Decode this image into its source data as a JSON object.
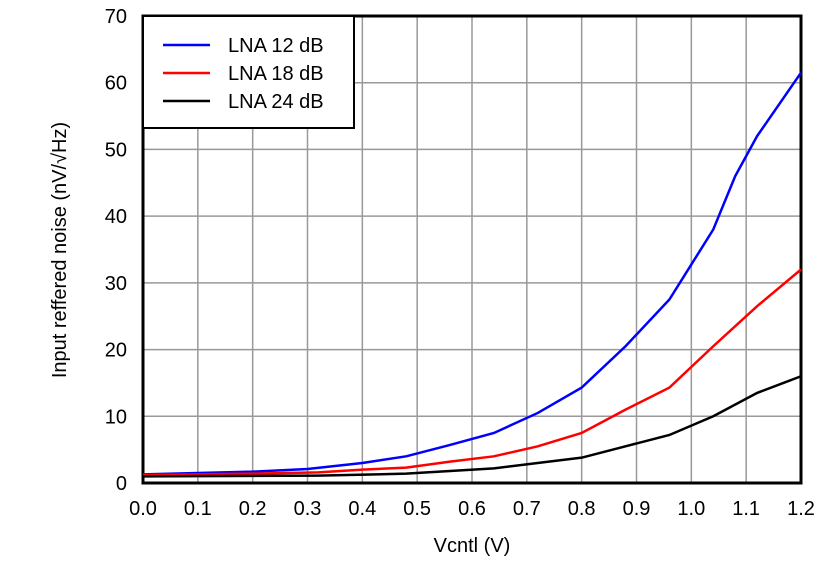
{
  "chart_data": {
    "type": "line",
    "title": "",
    "xlabel": "Vcntl (V)",
    "ylabel": "Input reffered noise (nV/√Hz)",
    "xlim": [
      0,
      1.2
    ],
    "ylim": [
      0,
      70
    ],
    "xticks": [
      "0.0",
      "0.1",
      "0.2",
      "0.3",
      "0.4",
      "0.5",
      "0.6",
      "0.7",
      "0.8",
      "0.9",
      "1.0",
      "1.1",
      "1.2"
    ],
    "yticks": [
      "0",
      "10",
      "20",
      "30",
      "40",
      "50",
      "60",
      "70"
    ],
    "grid": true,
    "legend": "top-left",
    "series": [
      {
        "name": "LNA 12 dB",
        "color": "#0000ff",
        "x": [
          0,
          0.2,
          0.3,
          0.4,
          0.48,
          0.56,
          0.64,
          0.72,
          0.8,
          0.88,
          0.96,
          1.04,
          1.08,
          1.12,
          1.2
        ],
        "y": [
          1.3,
          1.7,
          2.1,
          3.0,
          4.0,
          5.7,
          7.5,
          10.5,
          14.3,
          20.5,
          27.5,
          38,
          46,
          52,
          61.5
        ]
      },
      {
        "name": "LNA 18 dB",
        "color": "#ff0000",
        "x": [
          0,
          0.2,
          0.32,
          0.4,
          0.48,
          0.56,
          0.64,
          0.72,
          0.8,
          0.88,
          0.96,
          1.04,
          1.12,
          1.2
        ],
        "y": [
          1.2,
          1.4,
          1.6,
          2.0,
          2.3,
          3.2,
          4.0,
          5.5,
          7.5,
          11,
          14.3,
          20.5,
          26.5,
          32
        ]
      },
      {
        "name": "LNA 24 dB",
        "color": "#000000",
        "x": [
          0,
          0.32,
          0.48,
          0.64,
          0.8,
          0.88,
          0.96,
          1.04,
          1.12,
          1.2
        ],
        "y": [
          1.0,
          1.1,
          1.4,
          2.2,
          3.8,
          5.5,
          7.2,
          10,
          13.5,
          16
        ]
      }
    ]
  }
}
